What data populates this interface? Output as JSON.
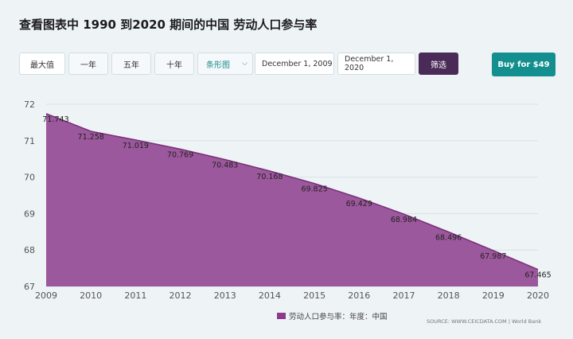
{
  "title": "查看图表中 1990 到2020 期间的中国 劳动人口参与率",
  "toolbar": {
    "max": "最大值",
    "one_year": "一年",
    "five_year": "五年",
    "ten_year": "十年",
    "chart_type": "条形图",
    "date_from": "December 1, 2009",
    "date_to": "December 1, 2020",
    "filter": "筛选",
    "buy": "Buy for $49"
  },
  "legend_label": "劳动人口参与率：年度：中国",
  "source": "SOURCE: WWW.CEICDATA.COM | World Bank",
  "colors": {
    "area": "#9c589c",
    "line": "#7a2e78",
    "accent": "#148f8f",
    "filter": "#4a2b58"
  },
  "chart_data": {
    "type": "area",
    "title": "查看图表中 1990 到2020 期间的中国 劳动人口参与率",
    "series": [
      {
        "name": "劳动人口参与率：年度：中国",
        "x": [
          2009,
          2010,
          2011,
          2012,
          2013,
          2014,
          2015,
          2016,
          2017,
          2018,
          2019,
          2020
        ],
        "values": [
          71.743,
          71.258,
          71.019,
          70.769,
          70.483,
          70.168,
          69.825,
          69.429,
          68.984,
          68.496,
          67.987,
          67.465
        ],
        "labels": [
          "71.743",
          "71.258",
          "71.019",
          "70.769",
          "70.483",
          "70.168",
          "69.825",
          "69.429",
          "68.984",
          "68.496",
          "67.987",
          "67.465"
        ]
      }
    ],
    "x_ticks": [
      "2009",
      "2010",
      "2011",
      "2012",
      "2013",
      "2014",
      "2015",
      "2016",
      "2017",
      "2018",
      "2019",
      "2020"
    ],
    "y_ticks": [
      "67",
      "68",
      "69",
      "70",
      "71",
      "72"
    ],
    "ylim": [
      67,
      72
    ],
    "xlim": [
      2009,
      2020
    ],
    "grid": true,
    "legend_position": "bottom"
  }
}
